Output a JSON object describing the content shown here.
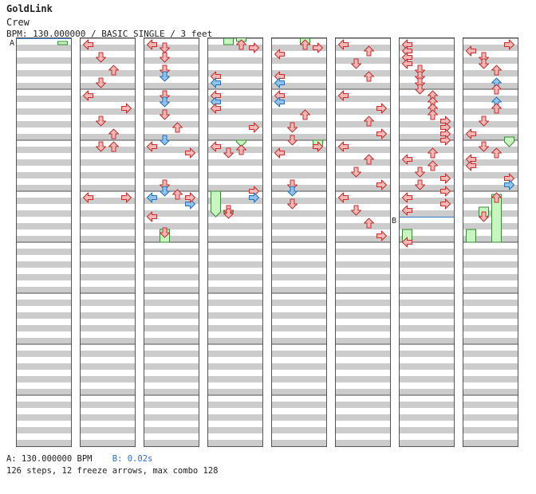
{
  "header": {
    "title": "GoldLink",
    "artist": "Crew",
    "info": "BPM: 130.000000 / BASIC SINGLE / 3 feet"
  },
  "footer": {
    "bpm_label": "A: 130.000000 BPM",
    "stop_label": "B: 0.02s",
    "summary": "126 steps, 12 freeze arrows, max combo 128"
  },
  "markers": {
    "a": "A",
    "b": "B"
  },
  "colors": {
    "arrow_red": "#f4b6b6",
    "arrow_red_stroke": "#c03030",
    "arrow_blue": "#8ec3ee",
    "arrow_blue_stroke": "#2b6fb5",
    "freeze_fill": "#c8f5c0",
    "freeze_stroke": "#3a8a3a",
    "stripe": "#cccccc",
    "marker_line": "#3a78c8"
  },
  "chart_data": {
    "type": "step-chart",
    "columns": 8,
    "measures_per_column": 8,
    "lanes": [
      "left",
      "down",
      "up",
      "right"
    ],
    "notes": [
      [
        1,
        0,
        0,
        "L",
        "r"
      ],
      [
        1,
        4,
        1,
        "D",
        "r"
      ],
      [
        1,
        8,
        2,
        "U",
        "r"
      ],
      [
        1,
        12,
        1,
        "D",
        "r"
      ],
      [
        1,
        16,
        0,
        "L",
        "r"
      ],
      [
        1,
        20,
        3,
        "R",
        "r"
      ],
      [
        1,
        24,
        1,
        "D",
        "r"
      ],
      [
        1,
        28,
        2,
        "U",
        "r"
      ],
      [
        1,
        32,
        1,
        "D",
        "r"
      ],
      [
        1,
        32,
        2,
        "U",
        "r"
      ],
      [
        1,
        48,
        0,
        "L",
        "r"
      ],
      [
        1,
        48,
        3,
        "R",
        "r"
      ],
      [
        2,
        0,
        0,
        "L",
        "r"
      ],
      [
        2,
        1,
        1,
        "D",
        "r"
      ],
      [
        2,
        4,
        1,
        "D",
        "r"
      ],
      [
        2,
        8,
        1,
        "D",
        "r"
      ],
      [
        2,
        10,
        1,
        "D",
        "b"
      ],
      [
        2,
        16,
        1,
        "D",
        "r"
      ],
      [
        2,
        18,
        1,
        "D",
        "b"
      ],
      [
        2,
        22,
        1,
        "D",
        "r"
      ],
      [
        2,
        26,
        2,
        "U",
        "r"
      ],
      [
        2,
        30,
        1,
        "D",
        "b"
      ],
      [
        2,
        32,
        0,
        "L",
        "r"
      ],
      [
        2,
        34,
        3,
        "R",
        "r"
      ],
      [
        2,
        44,
        1,
        "D",
        "r"
      ],
      [
        2,
        46,
        1,
        "D",
        "b"
      ],
      [
        2,
        47,
        2,
        "U",
        "r"
      ],
      [
        2,
        48,
        0,
        "L",
        "b"
      ],
      [
        2,
        50,
        3,
        "R",
        "b"
      ],
      [
        2,
        48,
        3,
        "R",
        "r"
      ],
      [
        2,
        54,
        0,
        "L",
        "r"
      ],
      [
        2,
        59,
        1,
        "D",
        "r"
      ],
      [
        3,
        0,
        2,
        "U",
        "r"
      ],
      [
        3,
        1,
        3,
        "R",
        "r"
      ],
      [
        3,
        10,
        0,
        "L",
        "r"
      ],
      [
        3,
        12,
        0,
        "L",
        "b"
      ],
      [
        3,
        16,
        0,
        "L",
        "r"
      ],
      [
        3,
        18,
        0,
        "L",
        "b"
      ],
      [
        3,
        20,
        0,
        "L",
        "r"
      ],
      [
        3,
        26,
        3,
        "R",
        "r"
      ],
      [
        3,
        32,
        0,
        "L",
        "r"
      ],
      [
        3,
        34,
        1,
        "D",
        "r"
      ],
      [
        3,
        33,
        2,
        "U",
        "r"
      ],
      [
        3,
        46,
        3,
        "R",
        "r"
      ],
      [
        3,
        48,
        3,
        "R",
        "b"
      ],
      [
        3,
        52,
        1,
        "D",
        "r"
      ],
      [
        3,
        53,
        1,
        "D",
        "r"
      ],
      [
        4,
        0,
        2,
        "U",
        "r"
      ],
      [
        4,
        1,
        3,
        "R",
        "r"
      ],
      [
        4,
        3,
        0,
        "L",
        "r"
      ],
      [
        4,
        10,
        0,
        "L",
        "r"
      ],
      [
        4,
        12,
        0,
        "L",
        "b"
      ],
      [
        4,
        16,
        0,
        "L",
        "r"
      ],
      [
        4,
        18,
        0,
        "L",
        "b"
      ],
      [
        4,
        22,
        2,
        "U",
        "r"
      ],
      [
        4,
        26,
        1,
        "D",
        "r"
      ],
      [
        4,
        30,
        1,
        "D",
        "r"
      ],
      [
        4,
        32,
        3,
        "R",
        "r"
      ],
      [
        4,
        34,
        0,
        "L",
        "r"
      ],
      [
        4,
        44,
        1,
        "D",
        "r"
      ],
      [
        4,
        46,
        1,
        "D",
        "b"
      ],
      [
        4,
        50,
        1,
        "D",
        "r"
      ],
      [
        5,
        0,
        0,
        "L",
        "r"
      ],
      [
        5,
        2,
        2,
        "U",
        "r"
      ],
      [
        5,
        6,
        1,
        "D",
        "r"
      ],
      [
        5,
        10,
        2,
        "U",
        "r"
      ],
      [
        5,
        16,
        0,
        "L",
        "r"
      ],
      [
        5,
        20,
        3,
        "R",
        "r"
      ],
      [
        5,
        24,
        2,
        "U",
        "r"
      ],
      [
        5,
        28,
        3,
        "R",
        "r"
      ],
      [
        5,
        32,
        0,
        "L",
        "r"
      ],
      [
        5,
        36,
        2,
        "U",
        "r"
      ],
      [
        5,
        40,
        1,
        "D",
        "r"
      ],
      [
        5,
        44,
        3,
        "R",
        "r"
      ],
      [
        5,
        48,
        0,
        "L",
        "r"
      ],
      [
        5,
        52,
        1,
        "D",
        "r"
      ],
      [
        5,
        56,
        2,
        "U",
        "r"
      ],
      [
        5,
        60,
        3,
        "R",
        "r"
      ],
      [
        6,
        0,
        0,
        "L",
        "r"
      ],
      [
        6,
        2,
        0,
        "L",
        "r"
      ],
      [
        6,
        4,
        0,
        "L",
        "r"
      ],
      [
        6,
        6,
        0,
        "L",
        "r"
      ],
      [
        6,
        8,
        1,
        "D",
        "r"
      ],
      [
        6,
        10,
        1,
        "D",
        "r"
      ],
      [
        6,
        12,
        1,
        "D",
        "r"
      ],
      [
        6,
        14,
        1,
        "D",
        "r"
      ],
      [
        6,
        16,
        2,
        "U",
        "r"
      ],
      [
        6,
        18,
        2,
        "U",
        "r"
      ],
      [
        6,
        20,
        2,
        "U",
        "r"
      ],
      [
        6,
        22,
        2,
        "U",
        "r"
      ],
      [
        6,
        24,
        3,
        "R",
        "r"
      ],
      [
        6,
        26,
        3,
        "R",
        "r"
      ],
      [
        6,
        28,
        3,
        "R",
        "r"
      ],
      [
        6,
        30,
        3,
        "R",
        "r"
      ],
      [
        6,
        34,
        2,
        "U",
        "r"
      ],
      [
        6,
        36,
        0,
        "L",
        "r"
      ],
      [
        6,
        38,
        2,
        "U",
        "r"
      ],
      [
        6,
        40,
        1,
        "D",
        "r"
      ],
      [
        6,
        42,
        3,
        "R",
        "r"
      ],
      [
        6,
        44,
        1,
        "D",
        "r"
      ],
      [
        6,
        46,
        3,
        "R",
        "r"
      ],
      [
        6,
        48,
        0,
        "L",
        "r"
      ],
      [
        6,
        50,
        3,
        "R",
        "r"
      ],
      [
        6,
        52,
        0,
        "L",
        "r"
      ],
      [
        6,
        62,
        0,
        "L",
        "r"
      ],
      [
        7,
        0,
        3,
        "R",
        "r"
      ],
      [
        7,
        2,
        0,
        "L",
        "r"
      ],
      [
        7,
        4,
        1,
        "D",
        "r"
      ],
      [
        7,
        6,
        1,
        "D",
        "r"
      ],
      [
        7,
        8,
        2,
        "U",
        "r"
      ],
      [
        7,
        12,
        2,
        "U",
        "b"
      ],
      [
        7,
        14,
        2,
        "U",
        "r"
      ],
      [
        7,
        18,
        2,
        "U",
        "b"
      ],
      [
        7,
        20,
        2,
        "U",
        "r"
      ],
      [
        7,
        24,
        1,
        "D",
        "r"
      ],
      [
        7,
        28,
        0,
        "L",
        "r"
      ],
      [
        7,
        32,
        1,
        "D",
        "r"
      ],
      [
        7,
        34,
        2,
        "U",
        "r"
      ],
      [
        7,
        36,
        0,
        "L",
        "r"
      ],
      [
        7,
        38,
        0,
        "L",
        "r"
      ],
      [
        7,
        42,
        3,
        "R",
        "r"
      ],
      [
        7,
        44,
        3,
        "R",
        "b"
      ],
      [
        7,
        48,
        2,
        "U",
        "r"
      ],
      [
        7,
        54,
        1,
        "D",
        "r"
      ]
    ],
    "freezes": [
      [
        0,
        0,
        3,
        1,
        2,
        "cut"
      ],
      [
        3,
        0,
        1,
        0,
        2,
        "cut"
      ],
      [
        3,
        0,
        2,
        -1,
        1,
        "cut"
      ],
      [
        4,
        0,
        2,
        0,
        2,
        "cut"
      ],
      [
        3,
        32,
        2,
        32,
        34,
        ""
      ],
      [
        4,
        32,
        3,
        32,
        35,
        ""
      ],
      [
        3,
        48,
        0,
        48,
        56,
        ""
      ],
      [
        3,
        54,
        1,
        54,
        56,
        ""
      ],
      [
        2,
        60,
        1,
        60,
        64,
        "cut"
      ],
      [
        7,
        32,
        3,
        31,
        34,
        ""
      ],
      [
        7,
        49,
        2,
        49,
        64,
        "cut"
      ],
      [
        7,
        53,
        1,
        53,
        57,
        ""
      ],
      [
        6,
        60,
        0,
        60,
        64,
        "cut"
      ],
      [
        7,
        60,
        0,
        60,
        64,
        "cut"
      ]
    ],
    "marker_a": [
      0,
      0
    ],
    "marker_b": [
      6,
      56
    ]
  }
}
